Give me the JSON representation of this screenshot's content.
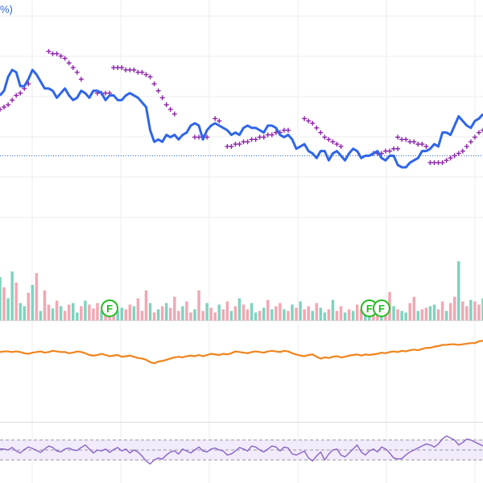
{
  "header": {
    "clipped_label": "%)"
  },
  "colors": {
    "price_line": "#2f66e8",
    "sar_marker": "#8e24aa",
    "vol_up": "#7fd3bf",
    "vol_down": "#f2a7b3",
    "obv_line": "#f0841c",
    "rsi_line": "#8a63c9",
    "rsi_band": "#f1ebfb",
    "ref_line": "#2f66e8",
    "grid": "#eeeeee",
    "flag_ring": "#22bb22"
  },
  "chart_data": [
    {
      "type": "line",
      "panel": "price",
      "ylim": [
        0,
        100
      ],
      "x_count": 120,
      "reference_line": 37,
      "series": [
        {
          "values": [
            63,
            65,
            71,
            74,
            73,
            67,
            67,
            70,
            74,
            72,
            69,
            66,
            66,
            65,
            62,
            64,
            66,
            63,
            61,
            62,
            65,
            64,
            62,
            65,
            65,
            64,
            61,
            63,
            63,
            61,
            61,
            63,
            64,
            63,
            62,
            60,
            58,
            48,
            43,
            44,
            43,
            46,
            45,
            46,
            44,
            46,
            47,
            50,
            51,
            50,
            44,
            48,
            50,
            51,
            50,
            49,
            48,
            46,
            47,
            46,
            49,
            50,
            49,
            49,
            48,
            47,
            50,
            50,
            49,
            46,
            45,
            46,
            44,
            40,
            41,
            42,
            39,
            38,
            36,
            39,
            39,
            35,
            38,
            39,
            37,
            35,
            38,
            40,
            39,
            36,
            37,
            37,
            38,
            39,
            36,
            35,
            37,
            37,
            33,
            32,
            32,
            34,
            35,
            36,
            39,
            39,
            40,
            42,
            41,
            47,
            47,
            46,
            50,
            54,
            52,
            50,
            49,
            52,
            53,
            55
          ]
        },
        {
          "style": "markers",
          "segments": [
            {
              "start": 0,
              "values": [
                57,
                58,
                59,
                61,
                63,
                64,
                66,
                68
              ]
            },
            {
              "start": 12,
              "values": [
                82,
                81,
                81,
                80,
                79,
                77,
                75,
                73,
                70
              ]
            },
            {
              "start": 24,
              "values": [
                64,
                64,
                64,
                64
              ]
            },
            {
              "start": 28,
              "values": [
                75,
                75,
                75,
                74,
                74,
                74,
                73,
                73,
                72,
                71,
                68,
                65,
                62,
                59,
                57,
                55
              ]
            },
            {
              "start": 48,
              "values": [
                45,
                45,
                45,
                45
              ]
            },
            {
              "start": 53,
              "values": [
                53,
                52
              ]
            },
            {
              "start": 56,
              "values": [
                41,
                41,
                42,
                42,
                43,
                43,
                44,
                44,
                45,
                45,
                46,
                46,
                47,
                47,
                48,
                48
              ]
            },
            {
              "start": 75,
              "values": [
                53,
                52,
                51,
                49,
                47,
                45,
                44,
                43,
                42,
                41
              ]
            },
            {
              "start": 92,
              "values": [
                38,
                38,
                38,
                39,
                39,
                40,
                40
              ]
            },
            {
              "start": 98,
              "values": [
                45,
                44,
                44,
                43,
                43,
                42,
                42,
                41
              ]
            },
            {
              "start": 106,
              "values": [
                34,
                34,
                34,
                34,
                35,
                36,
                37,
                38,
                39,
                41,
                43,
                45,
                47,
                48
              ]
            }
          ]
        }
      ]
    },
    {
      "type": "bar",
      "panel": "volume",
      "ylim": [
        0,
        100
      ],
      "values": [
        55,
        42,
        28,
        62,
        48,
        22,
        18,
        35,
        45,
        60,
        12,
        38,
        20,
        15,
        25,
        18,
        12,
        20,
        22,
        10,
        18,
        25,
        20,
        15,
        22,
        12,
        10,
        18,
        14,
        12,
        16,
        14,
        20,
        18,
        28,
        12,
        38,
        22,
        10,
        14,
        18,
        22,
        16,
        30,
        12,
        18,
        24,
        10,
        14,
        38,
        12,
        22,
        16,
        10,
        20,
        14,
        24,
        12,
        18,
        28,
        20,
        14,
        22,
        10,
        12,
        16,
        26,
        14,
        18,
        22,
        14,
        12,
        20,
        16,
        24,
        14,
        18,
        12,
        22,
        16,
        10,
        14,
        26,
        12,
        18,
        10,
        14,
        12,
        20,
        14,
        10,
        12,
        18,
        16,
        12,
        22,
        36,
        18,
        14,
        12,
        10,
        22,
        30,
        12,
        14,
        16,
        18,
        20,
        14,
        24,
        12,
        22,
        30,
        75,
        24,
        18,
        26,
        24,
        20,
        28
      ],
      "up": [
        1,
        0,
        1,
        1,
        0,
        1,
        1,
        0,
        1,
        0,
        1,
        0,
        0,
        1,
        0,
        1,
        0,
        0,
        1,
        1,
        0,
        1,
        0,
        0,
        0,
        1,
        0,
        0,
        0,
        1,
        1,
        0,
        0,
        1,
        0,
        0,
        0,
        1,
        0,
        1,
        0,
        1,
        0,
        0,
        0,
        1,
        0,
        0,
        1,
        0,
        0,
        1,
        0,
        0,
        1,
        0,
        0,
        1,
        0,
        1,
        0,
        0,
        1,
        1,
        0,
        1,
        0,
        1,
        0,
        0,
        1,
        0,
        1,
        0,
        1,
        0,
        0,
        1,
        0,
        1,
        1,
        0,
        1,
        0,
        0,
        1,
        0,
        1,
        0,
        0,
        1,
        1,
        0,
        0,
        1,
        0,
        0,
        1,
        0,
        1,
        1,
        0,
        0,
        1,
        0,
        0,
        1,
        1,
        0,
        0,
        1,
        0,
        0,
        1,
        0,
        0,
        1,
        0,
        0,
        1
      ],
      "flag_marks": [
        {
          "x": 27,
          "label": "F"
        },
        {
          "x": 91,
          "label": "F"
        },
        {
          "x": 94,
          "label": "F"
        }
      ]
    },
    {
      "type": "line",
      "panel": "obv",
      "ylim": [
        0,
        100
      ],
      "series": [
        {
          "values": [
            55,
            56,
            56,
            55,
            56,
            55,
            53,
            52,
            54,
            55,
            56,
            54,
            55,
            57,
            56,
            55,
            55,
            53,
            54,
            56,
            55,
            53,
            50,
            49,
            50,
            52,
            50,
            48,
            49,
            50,
            47,
            48,
            49,
            47,
            45,
            44,
            42,
            38,
            36,
            39,
            40,
            42,
            44,
            46,
            47,
            46,
            48,
            49,
            48,
            50,
            48,
            50,
            52,
            51,
            50,
            52,
            51,
            53,
            56,
            55,
            54,
            53,
            55,
            56,
            55,
            54,
            56,
            57,
            56,
            55,
            57,
            56,
            53,
            51,
            49,
            48,
            50,
            51,
            47,
            44,
            46,
            45,
            47,
            48,
            46,
            47,
            49,
            50,
            51,
            49,
            51,
            50,
            51,
            52,
            54,
            53,
            55,
            56,
            55,
            57,
            56,
            58,
            59,
            58,
            60,
            62,
            62,
            64,
            65,
            67,
            67,
            68,
            68,
            67,
            68,
            69,
            70,
            70,
            73,
            74
          ]
        }
      ]
    },
    {
      "type": "line",
      "panel": "rsi",
      "ylim": [
        0,
        100
      ],
      "bands": [
        70,
        50,
        30
      ],
      "series": [
        {
          "values": [
            52,
            52,
            50,
            55,
            48,
            44,
            51,
            56,
            53,
            49,
            45,
            52,
            58,
            55,
            48,
            46,
            52,
            54,
            50,
            49,
            55,
            60,
            52,
            44,
            50,
            48,
            52,
            45,
            51,
            55,
            48,
            52,
            44,
            50,
            46,
            38,
            28,
            22,
            30,
            34,
            32,
            40,
            46,
            48,
            42,
            52,
            48,
            44,
            50,
            56,
            48,
            46,
            52,
            54,
            50,
            48,
            40,
            42,
            48,
            55,
            52,
            48,
            58,
            56,
            50,
            46,
            52,
            58,
            56,
            48,
            56,
            54,
            42,
            40,
            44,
            48,
            34,
            28,
            38,
            46,
            30,
            42,
            50,
            52,
            40,
            36,
            44,
            52,
            60,
            46,
            40,
            48,
            52,
            46,
            56,
            52,
            44,
            34,
            32,
            33,
            40,
            46,
            50,
            54,
            58,
            62,
            60,
            56,
            62,
            72,
            78,
            74,
            70,
            60,
            65,
            72,
            70,
            66,
            62,
            58
          ]
        }
      ]
    }
  ]
}
